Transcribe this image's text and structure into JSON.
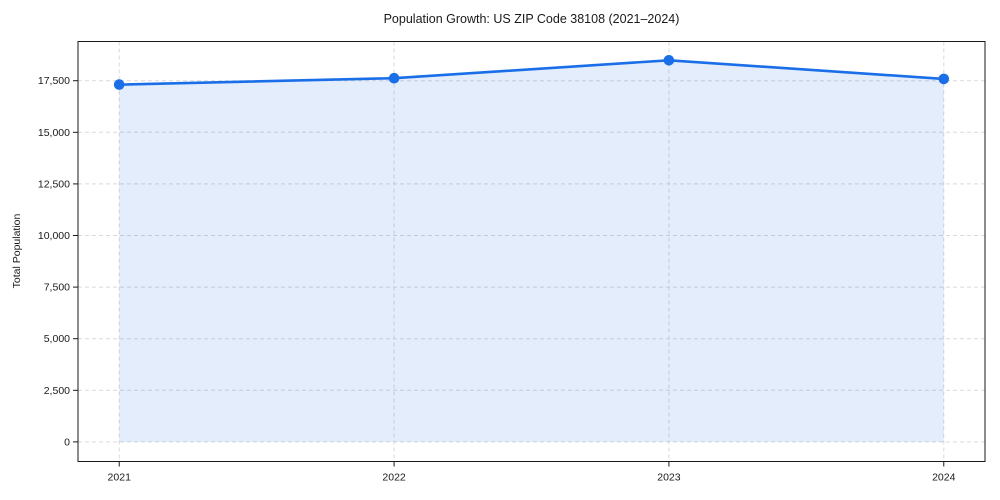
{
  "chart_data": {
    "type": "area",
    "title": "Population Growth: US ZIP Code 38108 (2021–2024)",
    "xlabel": "",
    "ylabel": "Total Population",
    "x": [
      2021,
      2022,
      2023,
      2024
    ],
    "series": [
      {
        "name": "Total Population",
        "values": [
          17310,
          17620,
          18490,
          17590
        ]
      }
    ],
    "x_tick_labels": [
      "2021",
      "2022",
      "2023",
      "2024"
    ],
    "y_ticks": [
      0,
      2500,
      5000,
      7500,
      10000,
      12500,
      15000,
      17500
    ],
    "y_tick_labels": [
      "0",
      "2,500",
      "5,000",
      "7,500",
      "10,000",
      "12,500",
      "15,000",
      "17,500"
    ],
    "xlim": [
      2020.85,
      2024.15
    ],
    "ylim": [
      -950,
      19400
    ],
    "grid": true,
    "grid_style": "dashed",
    "legend": "none",
    "colors": {
      "line": "#1a6fe8",
      "marker": "#1a6fe8",
      "fill": "rgba(26, 111, 232, 0.12)",
      "grid": "#d9d9d9",
      "spine": "#1a1a1a",
      "text": "#1a1a1a",
      "background": "#ffffff"
    }
  }
}
